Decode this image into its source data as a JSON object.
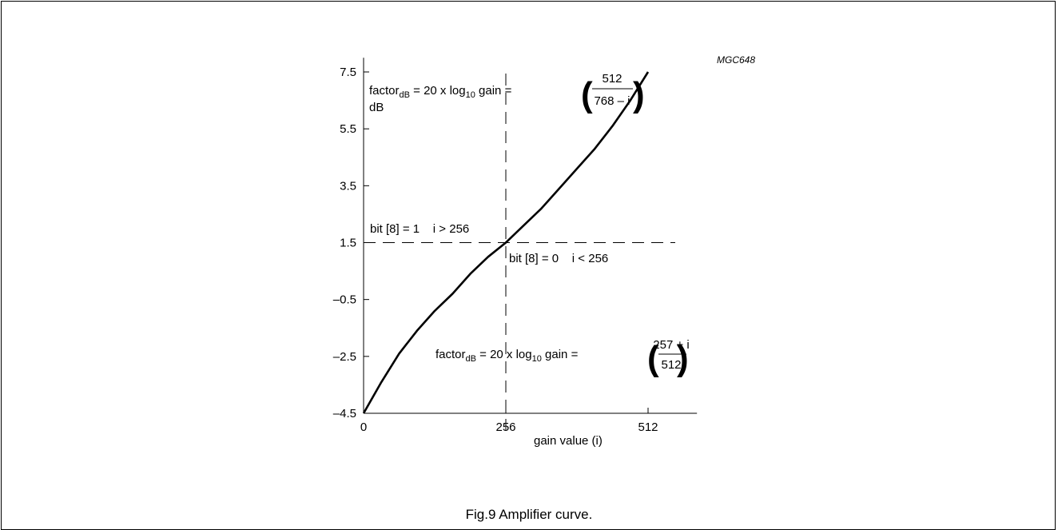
{
  "figure": {
    "id_label": "MGC648",
    "caption": "Fig.9  Amplifier curve."
  },
  "chart_data": {
    "type": "line",
    "xlabel": "gain value (i)",
    "ylabel": "dB",
    "xlim": [
      0,
      600
    ],
    "ylim": [
      -4.5,
      8.0
    ],
    "x_ticks": [
      {
        "value": 0,
        "label": "0"
      },
      {
        "value": 256,
        "label": "256"
      },
      {
        "value": 512,
        "label": "512"
      }
    ],
    "y_ticks": [
      {
        "value": 7.5,
        "label": "7.5"
      },
      {
        "value": 5.5,
        "label": "5.5"
      },
      {
        "value": 3.5,
        "label": "3.5"
      },
      {
        "value": 1.5,
        "label": "1.5"
      },
      {
        "value": -0.5,
        "label": "–0.5"
      },
      {
        "value": -2.5,
        "label": "–2.5"
      },
      {
        "value": -4.5,
        "label": "–4.5"
      }
    ],
    "grid": false,
    "series": [
      {
        "x": [
          0,
          32,
          64,
          96,
          128,
          160,
          192,
          224,
          256,
          288,
          320,
          352,
          384,
          416,
          448,
          480,
          512
        ],
        "values": [
          -4.5,
          -3.4,
          -2.4,
          -1.6,
          -0.9,
          -0.3,
          0.4,
          1.0,
          1.5,
          2.1,
          2.7,
          3.4,
          4.1,
          4.8,
          5.6,
          6.5,
          7.5
        ]
      }
    ],
    "reference_lines": {
      "horizontal_y": 1.5,
      "vertical_x": 256
    },
    "annotations": {
      "upper_formula": {
        "prefix": "factor",
        "sub": "dB",
        "mid": " = 20 x log",
        "sub2": "10",
        "suffix": " gain = ",
        "numerator": "512",
        "denominator": "768 – i"
      },
      "lower_formula": {
        "prefix": "factor",
        "sub": "dB",
        "mid": " = 20 x log",
        "sub2": "10",
        "suffix": " gain = ",
        "numerator": "257 + i",
        "denominator": "512"
      },
      "bit_high": "bit [8] = 1    i > 256",
      "bit_low": "bit [8] = 0    i < 256"
    }
  }
}
